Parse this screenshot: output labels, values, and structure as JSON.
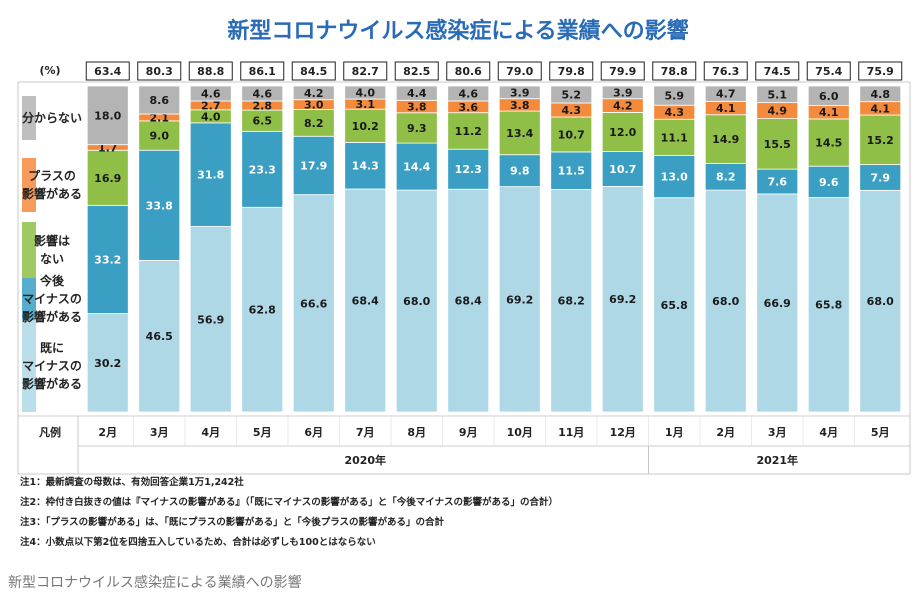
{
  "chart_data": {
    "type": "bar",
    "stacked": true,
    "title": "新型コロナウイルス感染症による業績への影響",
    "unit_label": "(%)",
    "legend_header": "凡例",
    "years": [
      {
        "label": "2020年",
        "months": 11
      },
      {
        "label": "2021年",
        "months": 5
      }
    ],
    "categories": [
      "2月",
      "3月",
      "4月",
      "5月",
      "6月",
      "7月",
      "8月",
      "9月",
      "10月",
      "11月",
      "12月",
      "1月",
      "2月",
      "3月",
      "4月",
      "5月"
    ],
    "boxed_totals": [
      "63.4",
      "80.3",
      "88.8",
      "86.1",
      "84.5",
      "82.7",
      "82.5",
      "80.6",
      "79.0",
      "79.8",
      "79.9",
      "78.8",
      "76.3",
      "74.5",
      "75.4",
      "75.9"
    ],
    "series": [
      {
        "name": "既にマイナスの影響がある",
        "color": "#aed8e6",
        "values": [
          30.2,
          46.5,
          56.9,
          62.8,
          66.6,
          68.4,
          68.0,
          68.4,
          69.2,
          68.2,
          69.2,
          65.8,
          68.0,
          66.9,
          65.8,
          68.0
        ]
      },
      {
        "name": "今後マイナスの影響がある",
        "color": "#3a9fc2",
        "values": [
          33.2,
          33.8,
          31.8,
          23.3,
          17.9,
          14.3,
          14.4,
          12.3,
          9.8,
          11.5,
          10.7,
          13.0,
          8.2,
          7.6,
          9.6,
          7.9
        ]
      },
      {
        "name": "影響はない",
        "color": "#8fbf47",
        "values": [
          16.9,
          9.0,
          4.0,
          6.5,
          8.2,
          10.2,
          9.3,
          11.2,
          13.4,
          10.7,
          12.0,
          11.1,
          14.9,
          15.5,
          14.5,
          15.2
        ]
      },
      {
        "name": "プラスの影響がある",
        "color": "#f48a3c",
        "values": [
          1.7,
          2.1,
          2.7,
          2.8,
          3.0,
          3.1,
          3.8,
          3.6,
          3.8,
          4.3,
          4.2,
          4.3,
          4.1,
          4.9,
          4.1,
          4.1
        ]
      },
      {
        "name": "分からない",
        "color": "#b4b4b4",
        "values": [
          18.0,
          8.6,
          4.6,
          4.6,
          4.2,
          4.0,
          4.4,
          4.6,
          3.9,
          5.2,
          3.9,
          5.9,
          4.7,
          5.1,
          6.0,
          4.8
        ]
      }
    ],
    "legend_labels": [
      [
        "既に",
        "マイナスの",
        "影響がある"
      ],
      [
        "今後",
        "マイナスの",
        "影響がある"
      ],
      [
        "影響は",
        "ない"
      ],
      [
        "プラスの",
        "影響がある"
      ],
      [
        "分からない"
      ]
    ],
    "ylim": [
      0,
      100
    ]
  },
  "notes": [
    "注1：最新調査の母数は、有効回答企業1万1,242社",
    "注2：枠付き白抜きの値は『マイナスの影響がある』（「既にマイナスの影響がある」と「今後マイナスの影響がある」の合計）",
    "注3：「プラスの影響がある」は、「既にプラスの影響がある」と「今後プラスの影響がある」の合計",
    "注4：小数点以下第2位を四捨五入しているため、合計は必ずしも100とはならない"
  ],
  "caption": "新型コロナウイルス感染症による業績への影響"
}
